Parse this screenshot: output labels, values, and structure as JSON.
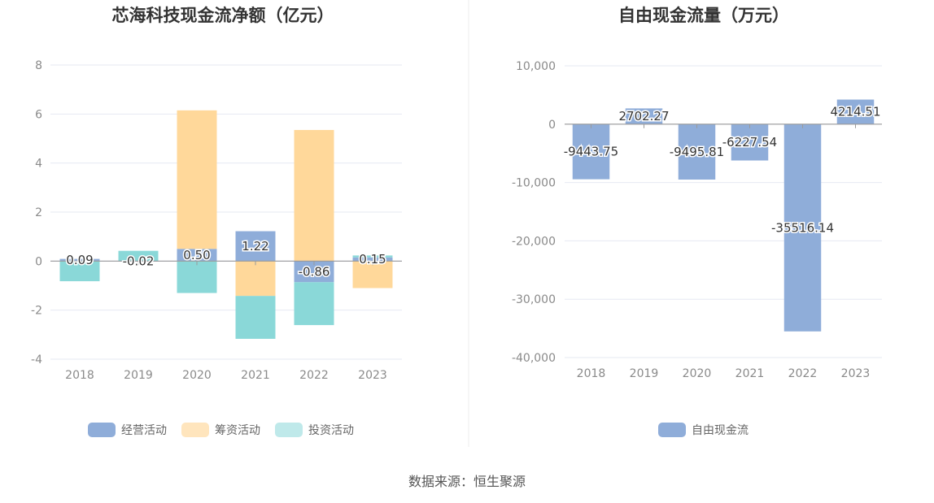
{
  "chart_data": [
    {
      "type": "bar",
      "stacked": true,
      "title": "芯海科技现金流净额（亿元）",
      "categories": [
        "2018",
        "2019",
        "2020",
        "2021",
        "2022",
        "2023"
      ],
      "ylim": [
        -4,
        8
      ],
      "yticks": [
        "-4",
        "-2",
        "0",
        "2",
        "4",
        "6",
        "8"
      ],
      "grid": true,
      "legend_position": "bottom",
      "series": [
        {
          "name": "经营活动",
          "color": "#8fadd9",
          "values": [
            0.09,
            -0.02,
            0.5,
            1.22,
            -0.86,
            0.15
          ],
          "labels": [
            "0.09",
            "-0.02",
            "0.50",
            "1.22",
            "-0.86",
            "0.15"
          ]
        },
        {
          "name": "筹资活动",
          "color": "#ffd89a",
          "values": [
            0.0,
            0.0,
            5.65,
            -1.42,
            5.35,
            -1.1
          ],
          "legend_color": "#ffe5bd"
        },
        {
          "name": "投资活动",
          "color": "#8ad8d8",
          "values": [
            -0.82,
            0.42,
            -1.3,
            -1.75,
            -1.75,
            0.08
          ],
          "legend_color": "#bfe9ea"
        }
      ]
    },
    {
      "type": "bar",
      "title": "自由现金流量（万元）",
      "categories": [
        "2018",
        "2019",
        "2020",
        "2021",
        "2022",
        "2023"
      ],
      "ylim": [
        -40000,
        10000
      ],
      "yticks": [
        "-40,000",
        "-30,000",
        "-20,000",
        "-10,000",
        "0",
        "10,000"
      ],
      "grid": true,
      "legend_position": "bottom",
      "series": [
        {
          "name": "自由现金流",
          "color": "#8fadd9",
          "values": [
            -9443.75,
            2702.27,
            -9495.81,
            -6227.54,
            -35516.14,
            4214.51
          ],
          "labels": [
            "-9443.75",
            "2702.27",
            "-9495.81",
            "-6227.54",
            "-35516.14",
            "4214.51"
          ]
        }
      ]
    }
  ],
  "footer": {
    "source": "数据来源：恒生聚源"
  }
}
